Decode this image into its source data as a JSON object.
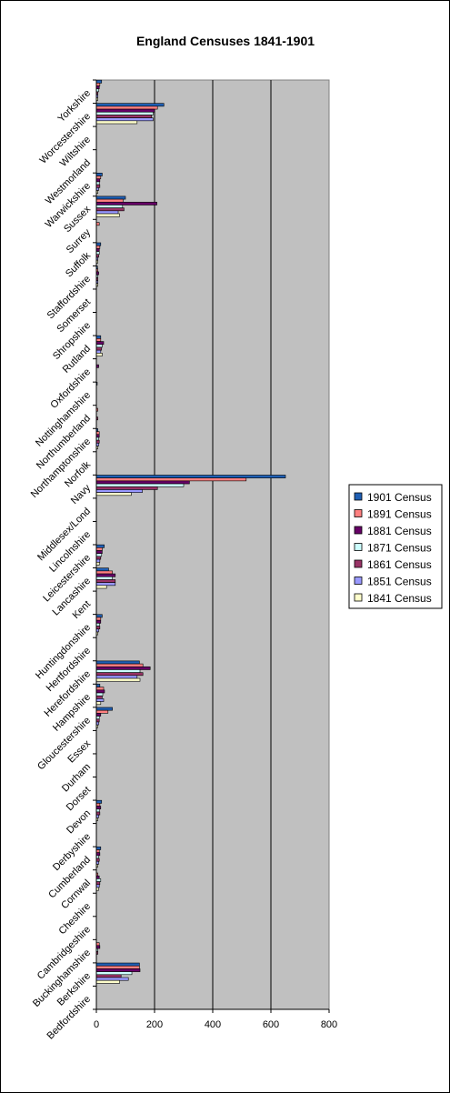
{
  "chart_data": {
    "type": "bar",
    "orientation": "horizontal",
    "title": "England Censuses 1841-1901",
    "xlim": [
      0,
      800
    ],
    "xticks": [
      0,
      200,
      400,
      600,
      800
    ],
    "grid": true,
    "legend_position": "right",
    "background_color": "#C0C0C0",
    "categories": [
      "Bedfordshire",
      "Berkshire",
      "Buckinghamshire",
      "Cambridgeshire",
      "Cheshire",
      "Cornwal",
      "Cumberland",
      "Derbyshire",
      "Devon",
      "Dorset",
      "Durham",
      "Essex",
      "Gloucestershire",
      "Hampshire",
      "Herefordshire",
      "Hertfordshire",
      "Huntingdonshire",
      "Kent",
      "Lancashire",
      "Leicestershire",
      "Lincolnshire",
      "Middlesex/Lond",
      "Navy",
      "Norfolk",
      "Northamptonshire",
      "Northumberland",
      "Nottinghamshire",
      "Oxfordshire",
      "Rutland",
      "Shropshire",
      "Somerset",
      "Staffordshire",
      "Suffolk",
      "Surrey",
      "Sussex",
      "Warwickshire",
      "Westmorland",
      "Wiltshire",
      "Worcestershire",
      "Yorkshire"
    ],
    "series": [
      {
        "name": "1901 Census",
        "color": "#1F5FB4",
        "values": [
          0,
          148,
          0,
          0,
          0,
          0,
          15,
          0,
          18,
          0,
          0,
          0,
          55,
          12,
          148,
          0,
          20,
          0,
          42,
          27,
          0,
          0,
          650,
          0,
          5,
          0,
          3,
          0,
          15,
          0,
          0,
          4,
          15,
          0,
          100,
          20,
          0,
          0,
          232,
          18
        ]
      },
      {
        "name": "1891 Census",
        "color": "#FF8080",
        "values": [
          0,
          148,
          10,
          0,
          0,
          5,
          10,
          0,
          12,
          0,
          0,
          0,
          40,
          25,
          160,
          0,
          15,
          0,
          55,
          20,
          0,
          0,
          515,
          0,
          10,
          5,
          0,
          0,
          15,
          0,
          0,
          5,
          12,
          10,
          92,
          15,
          0,
          0,
          210,
          12
        ]
      },
      {
        "name": "1881 Census",
        "color": "#660066",
        "values": [
          0,
          150,
          12,
          0,
          0,
          10,
          12,
          0,
          15,
          0,
          0,
          0,
          15,
          28,
          185,
          0,
          15,
          0,
          65,
          20,
          0,
          0,
          320,
          0,
          10,
          0,
          0,
          8,
          25,
          0,
          0,
          8,
          10,
          0,
          208,
          12,
          0,
          0,
          200,
          10
        ]
      },
      {
        "name": "1871 Census",
        "color": "#CCFFFF",
        "values": [
          0,
          122,
          5,
          0,
          0,
          15,
          8,
          0,
          10,
          0,
          0,
          0,
          10,
          22,
          150,
          0,
          10,
          0,
          55,
          18,
          0,
          0,
          300,
          0,
          8,
          0,
          0,
          0,
          20,
          0,
          0,
          5,
          10,
          0,
          90,
          10,
          0,
          0,
          195,
          8
        ]
      },
      {
        "name": "1861 Census",
        "color": "#993366",
        "values": [
          0,
          85,
          5,
          0,
          0,
          12,
          10,
          0,
          12,
          0,
          0,
          0,
          10,
          20,
          160,
          0,
          12,
          0,
          65,
          15,
          0,
          0,
          210,
          0,
          10,
          5,
          0,
          0,
          18,
          0,
          0,
          5,
          8,
          0,
          95,
          12,
          0,
          0,
          190,
          5
        ]
      },
      {
        "name": "1851 Census",
        "color": "#9999FF",
        "values": [
          0,
          110,
          0,
          0,
          0,
          10,
          8,
          0,
          8,
          0,
          0,
          0,
          8,
          25,
          140,
          0,
          8,
          0,
          65,
          12,
          0,
          0,
          158,
          0,
          8,
          0,
          0,
          0,
          15,
          0,
          0,
          5,
          5,
          0,
          75,
          8,
          0,
          0,
          195,
          5
        ]
      },
      {
        "name": "1841 Census",
        "color": "#FFFFCC",
        "values": [
          0,
          80,
          0,
          0,
          0,
          8,
          5,
          0,
          5,
          0,
          0,
          0,
          5,
          15,
          150,
          0,
          5,
          0,
          35,
          10,
          0,
          0,
          120,
          0,
          5,
          0,
          0,
          0,
          20,
          0,
          0,
          5,
          5,
          0,
          80,
          5,
          0,
          0,
          140,
          5
        ]
      }
    ]
  }
}
